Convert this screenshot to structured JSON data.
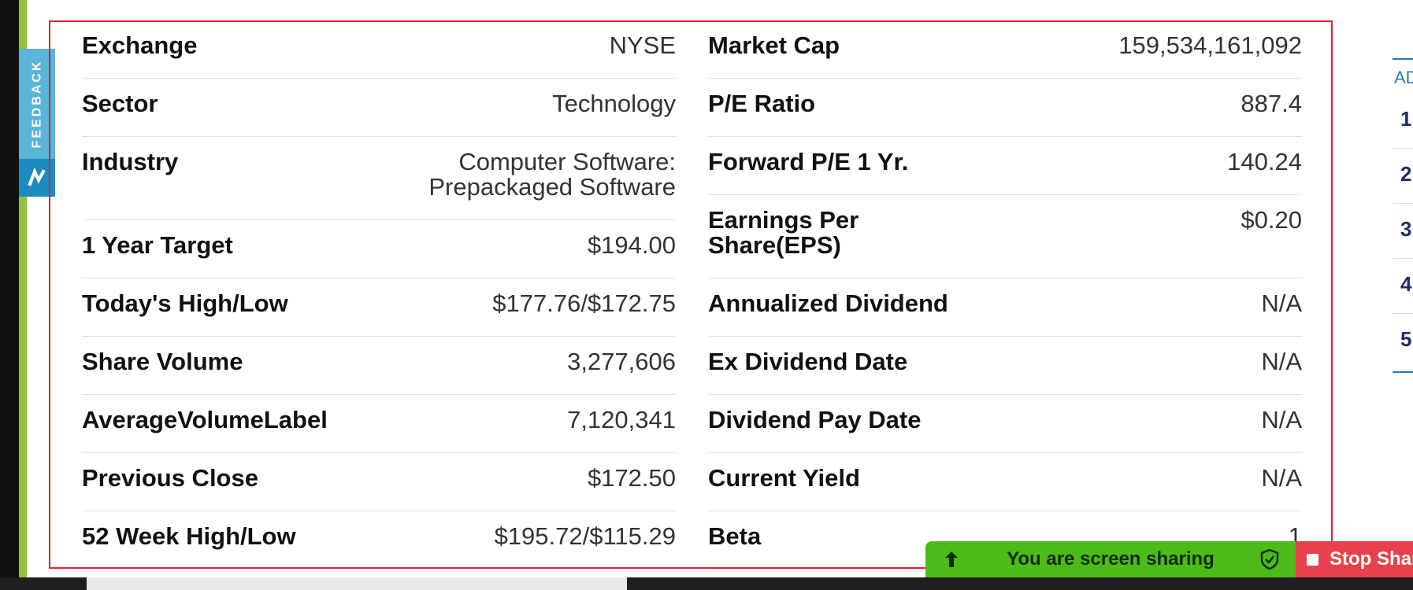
{
  "feedback": {
    "label": "FEEDBACK"
  },
  "left_column": [
    {
      "label": "Exchange",
      "value": "NYSE"
    },
    {
      "label": "Sector",
      "value": "Technology"
    },
    {
      "label": "Industry",
      "value": "Computer Software: Prepackaged Software"
    },
    {
      "label": "1 Year Target",
      "value": "$194.00"
    },
    {
      "label": "Today's High/Low",
      "value": "$177.76/$172.75"
    },
    {
      "label": "Share Volume",
      "value": "3,277,606"
    },
    {
      "label": "AverageVolumeLabel",
      "value": "7,120,341"
    },
    {
      "label": "Previous Close",
      "value": "$172.50"
    },
    {
      "label": "52 Week High/Low",
      "value": "$195.72/$115.29"
    }
  ],
  "right_column": [
    {
      "label": "Market Cap",
      "value": "159,534,161,092"
    },
    {
      "label": "P/E Ratio",
      "value": "887.4"
    },
    {
      "label": "Forward P/E 1 Yr.",
      "value": "140.24"
    },
    {
      "label": "Earnings Per Share(EPS)",
      "value": "$0.20"
    },
    {
      "label": "Annualized Dividend",
      "value": "N/A"
    },
    {
      "label": "Ex Dividend Date",
      "value": "N/A"
    },
    {
      "label": "Dividend Pay Date",
      "value": "N/A"
    },
    {
      "label": "Current Yield",
      "value": "N/A"
    },
    {
      "label": "Beta",
      "value": "1"
    }
  ],
  "side_panel": {
    "tab_label": "AD",
    "numbers": [
      "1",
      "2",
      "3",
      "4",
      "5"
    ]
  },
  "share_bar": {
    "message": "You are screen sharing",
    "stop_label": "Stop Share"
  },
  "colors": {
    "frame_border": "#e02030",
    "share_green": "#4cbb17",
    "stop_red": "#e8414b",
    "feedback_blue": "#5bb5d8"
  }
}
